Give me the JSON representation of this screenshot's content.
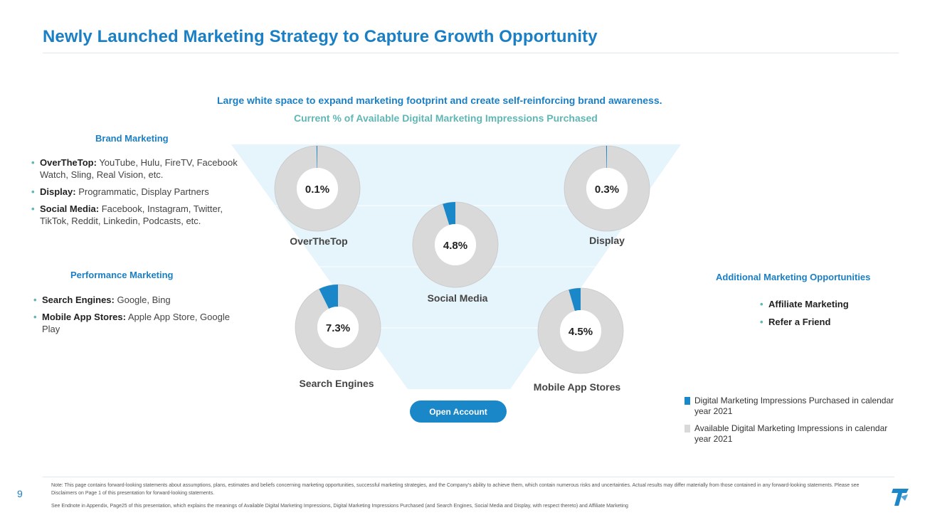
{
  "header": {
    "title": "Newly Launched Marketing Strategy to Capture Growth Opportunity"
  },
  "chart_data": {
    "type": "pie",
    "title": "Large white space to expand marketing footprint and create self-reinforcing brand awareness.",
    "subtitle": "Current % of Available Digital Marketing Impressions Purchased",
    "series": [
      {
        "name": "OverTheTop",
        "value": 0.1,
        "label": "0.1%"
      },
      {
        "name": "Display",
        "value": 0.3,
        "label": "0.3%"
      },
      {
        "name": "Social Media",
        "value": 4.8,
        "label": "4.8%"
      },
      {
        "name": "Search Engines",
        "value": 7.3,
        "label": "7.3%"
      },
      {
        "name": "Mobile  App Stores",
        "value": 4.5,
        "label": "4.5%"
      }
    ],
    "legend": [
      {
        "label": "Digital Marketing Impressions Purchased in calendar year 2021",
        "color": "#1a87c9"
      },
      {
        "label": "Available Digital Marketing Impressions in calendar year 2021",
        "color": "#d9d9d9"
      }
    ]
  },
  "brand": {
    "title": "Brand Marketing",
    "items": [
      {
        "label": "OverTheTop:",
        "text": " YouTube, Hulu, FireTV, Facebook Watch, Sling, Real Vision, etc."
      },
      {
        "label": "Display:",
        "text": " Programmatic, Display Partners"
      },
      {
        "label": "Social Media:",
        "text": " Facebook, Instagram, Twitter, TikTok,  Reddit, Linkedin, Podcasts, etc."
      }
    ]
  },
  "performance": {
    "title": "Performance Marketing",
    "items": [
      {
        "label": "Search Engines:",
        "text": " Google, Bing"
      },
      {
        "label": "Mobile App Stores:",
        "text": " Apple App Store, Google Play"
      }
    ]
  },
  "additional": {
    "title": "Additional Marketing Opportunities",
    "items": [
      "Affiliate Marketing",
      "Refer a Friend"
    ]
  },
  "bullet_glyph": "•",
  "cta": {
    "label": "Open Account"
  },
  "footer": {
    "page_number": "9",
    "note": "Note: This page contains forward-looking statements about assumptions, plans, estimates and beliefs concerning  marketing opportunities, successful marketing strategies, and the Company’s ability to achieve them, which contain numerous risks and uncertainties. Actual results may differ materially from those contained in any forward-looking statements. Please see Disclaimers on Page 1 of this presentation for forward-looking statements.",
    "endnote": "See Endnote in Appendix, Page25 of this presentation, which explains the meanings of Available Digital Marketing Impressions, Digital Marketing Impressions Purchased (and Search Engines, Social Media and Display, with respect thereto) and Affiliate Marketing"
  },
  "colors": {
    "accent": "#1a7fc4",
    "teal": "#5fb7b4",
    "funnel": "#e6f4fb",
    "purchased": "#1a87c9",
    "available": "#d9d9d9"
  }
}
